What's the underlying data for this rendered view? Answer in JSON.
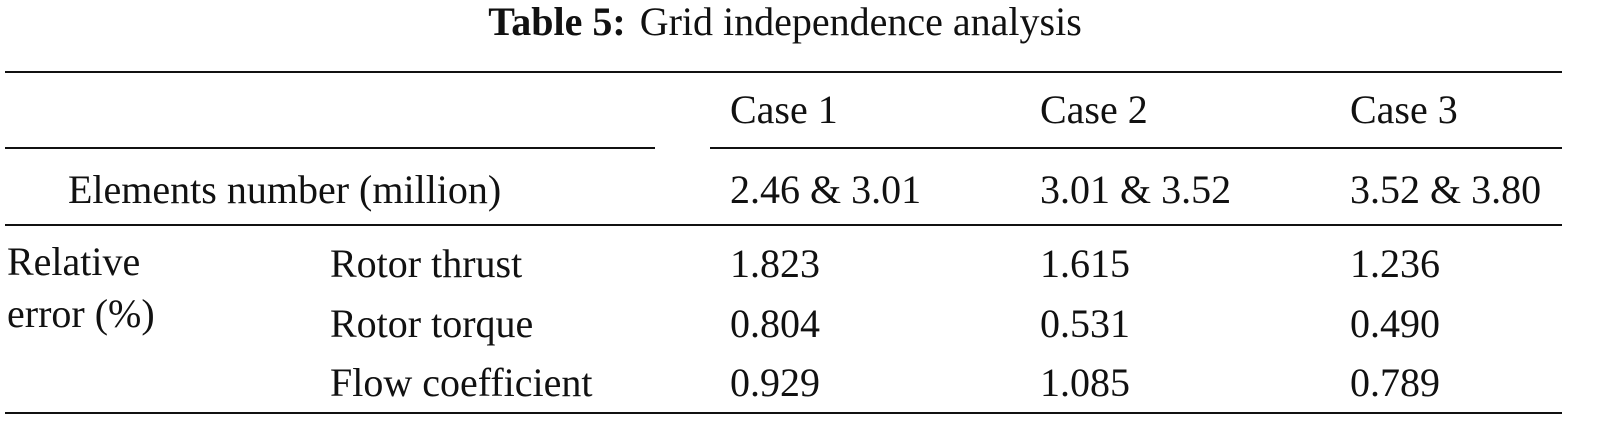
{
  "title": {
    "label": "Table 5:",
    "text": "Grid independence analysis"
  },
  "table": {
    "header": [
      "Case 1",
      "Case 2",
      "Case 3"
    ],
    "elements": {
      "label": "Elements number (million)",
      "values": [
        "2.46 & 3.01",
        "3.01 & 3.52",
        "3.52 & 3.80"
      ]
    },
    "group": "Relative error (%)",
    "rows": [
      {
        "label": "Rotor thrust",
        "values": [
          "1.823",
          "1.615",
          "1.236"
        ]
      },
      {
        "label": "Rotor torque",
        "values": [
          "0.804",
          "0.531",
          "0.490"
        ]
      },
      {
        "label": "Flow coefficient",
        "values": [
          "0.929",
          "1.085",
          "0.789"
        ]
      }
    ]
  }
}
